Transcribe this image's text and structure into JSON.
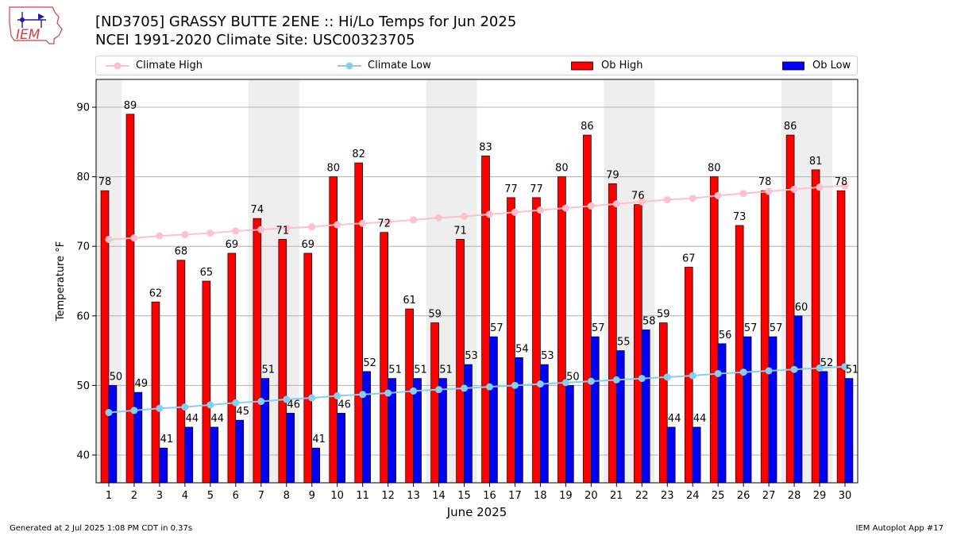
{
  "header": {
    "logo_text": "IEM",
    "title_line1": "[ND3705] GRASSY BUTTE 2ENE :: Hi/Lo Temps for Jun 2025",
    "title_line2": "NCEI 1991-2020 Climate Site: USC00323705"
  },
  "footer": {
    "generated": "Generated at 2 Jul 2025 1:08 PM CDT in 0.37s",
    "app": "IEM Autoplot App #17"
  },
  "colors": {
    "ob_high": "#ff0000",
    "ob_low": "#0000ff",
    "climate_high": "#ffc0cb",
    "climate_low": "#87ceeb",
    "weekend_shade": "#eeeeee",
    "grid": "#b0b0b0"
  },
  "chart_data": {
    "type": "bar",
    "title": "[ND3705] GRASSY BUTTE 2ENE :: Hi/Lo Temps for Jun 2025",
    "subtitle": "NCEI 1991-2020 Climate Site: USC00323705",
    "xlabel": "June 2025",
    "ylabel": "Temperature °F",
    "ylim": [
      36,
      94
    ],
    "yticks": [
      40,
      50,
      60,
      70,
      80,
      90
    ],
    "grid": true,
    "legend": "top",
    "categories": [
      "1",
      "2",
      "3",
      "4",
      "5",
      "6",
      "7",
      "8",
      "9",
      "10",
      "11",
      "12",
      "13",
      "14",
      "15",
      "16",
      "17",
      "18",
      "19",
      "20",
      "21",
      "22",
      "23",
      "24",
      "25",
      "26",
      "27",
      "28",
      "29",
      "30"
    ],
    "shaded_days": [
      1,
      7,
      8,
      14,
      15,
      21,
      22,
      28,
      29
    ],
    "series": [
      {
        "name": "Climate High",
        "kind": "line",
        "values": [
          71.0,
          71.2,
          71.5,
          71.7,
          71.9,
          72.2,
          72.4,
          72.6,
          72.8,
          73.1,
          73.3,
          73.5,
          73.8,
          74.1,
          74.3,
          74.6,
          74.9,
          75.2,
          75.5,
          75.8,
          76.1,
          76.4,
          76.7,
          76.9,
          77.3,
          77.6,
          77.9,
          78.2,
          78.5,
          78.7
        ]
      },
      {
        "name": "Climate Low",
        "kind": "line",
        "values": [
          46.1,
          46.4,
          46.7,
          46.9,
          47.2,
          47.5,
          47.7,
          48.0,
          48.2,
          48.5,
          48.7,
          48.9,
          49.2,
          49.4,
          49.6,
          49.8,
          50.0,
          50.2,
          50.4,
          50.6,
          50.8,
          51.0,
          51.2,
          51.4,
          51.7,
          51.9,
          52.1,
          52.3,
          52.5,
          52.7
        ]
      },
      {
        "name": "Ob High",
        "kind": "bar",
        "values": [
          78,
          89,
          62,
          68,
          65,
          69,
          74,
          71,
          69,
          80,
          82,
          72,
          61,
          59,
          71,
          83,
          77,
          77,
          80,
          86,
          79,
          76,
          59,
          67,
          80,
          73,
          78,
          86,
          81,
          78
        ]
      },
      {
        "name": "Ob Low",
        "kind": "bar",
        "values": [
          50,
          49,
          41,
          44,
          44,
          45,
          51,
          46,
          41,
          46,
          52,
          51,
          51,
          51,
          53,
          57,
          54,
          53,
          50,
          57,
          55,
          58,
          44,
          44,
          56,
          57,
          57,
          60,
          52,
          51
        ]
      }
    ]
  }
}
